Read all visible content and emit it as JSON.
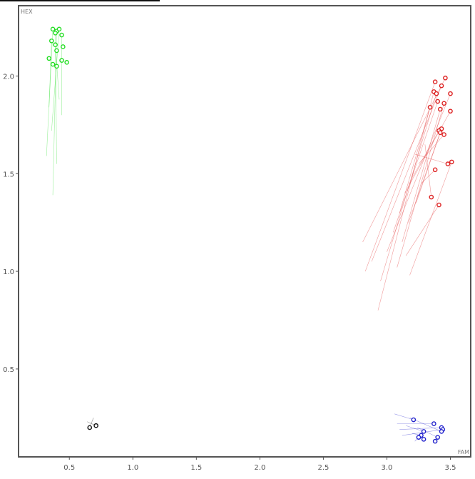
{
  "chart_data": {
    "type": "scatter",
    "xlabel": "FAM",
    "ylabel": "HEX",
    "xlim": [
      0.1,
      3.66
    ],
    "ylim": [
      0.05,
      2.36
    ],
    "x_ticks": [
      "0.5",
      "1.0",
      "1.5",
      "2.0",
      "2.5",
      "3.0",
      "3.5"
    ],
    "y_ticks": [
      "0.5",
      "1.0",
      "1.5",
      "2.0"
    ],
    "grid": false,
    "series": [
      {
        "color": "#22dd22",
        "points": [
          {
            "x": 0.37,
            "y": 2.24
          },
          {
            "x": 0.4,
            "y": 2.23
          },
          {
            "x": 0.42,
            "y": 2.24
          },
          {
            "x": 0.39,
            "y": 2.22
          },
          {
            "x": 0.44,
            "y": 2.21
          },
          {
            "x": 0.36,
            "y": 2.18
          },
          {
            "x": 0.39,
            "y": 2.16
          },
          {
            "x": 0.45,
            "y": 2.15
          },
          {
            "x": 0.4,
            "y": 2.13
          },
          {
            "x": 0.34,
            "y": 2.09
          },
          {
            "x": 0.44,
            "y": 2.08
          },
          {
            "x": 0.48,
            "y": 2.07
          },
          {
            "x": 0.37,
            "y": 2.06
          },
          {
            "x": 0.4,
            "y": 2.05
          }
        ],
        "trails": [
          {
            "x": 0.32,
            "y": 1.59
          },
          {
            "x": 0.37,
            "y": 1.39
          },
          {
            "x": 0.36,
            "y": 1.72
          },
          {
            "x": 0.4,
            "y": 1.55
          },
          {
            "x": 0.44,
            "y": 1.8
          },
          {
            "x": 0.34,
            "y": 1.84
          },
          {
            "x": 0.42,
            "y": 1.88
          }
        ]
      },
      {
        "color": "#dd2222",
        "points": [
          {
            "x": 3.46,
            "y": 1.99
          },
          {
            "x": 3.38,
            "y": 1.97
          },
          {
            "x": 3.43,
            "y": 1.95
          },
          {
            "x": 3.37,
            "y": 1.92
          },
          {
            "x": 3.39,
            "y": 1.91
          },
          {
            "x": 3.5,
            "y": 1.91
          },
          {
            "x": 3.4,
            "y": 1.87
          },
          {
            "x": 3.45,
            "y": 1.86
          },
          {
            "x": 3.34,
            "y": 1.84
          },
          {
            "x": 3.42,
            "y": 1.83
          },
          {
            "x": 3.5,
            "y": 1.82
          },
          {
            "x": 3.43,
            "y": 1.73
          },
          {
            "x": 3.41,
            "y": 1.72
          },
          {
            "x": 3.42,
            "y": 1.71
          },
          {
            "x": 3.45,
            "y": 1.7
          },
          {
            "x": 3.51,
            "y": 1.56
          },
          {
            "x": 3.48,
            "y": 1.55
          },
          {
            "x": 3.38,
            "y": 1.52
          },
          {
            "x": 3.35,
            "y": 1.38
          },
          {
            "x": 3.41,
            "y": 1.34
          }
        ],
        "trails": [
          {
            "x": 2.81,
            "y": 1.15
          },
          {
            "x": 2.83,
            "y": 1.0
          },
          {
            "x": 2.88,
            "y": 1.05
          },
          {
            "x": 2.93,
            "y": 0.8
          },
          {
            "x": 2.95,
            "y": 0.95
          },
          {
            "x": 3.0,
            "y": 1.1
          },
          {
            "x": 3.05,
            "y": 1.2
          },
          {
            "x": 3.08,
            "y": 1.02
          },
          {
            "x": 3.1,
            "y": 1.3
          },
          {
            "x": 3.12,
            "y": 1.15
          },
          {
            "x": 3.14,
            "y": 1.4
          },
          {
            "x": 3.17,
            "y": 1.25
          },
          {
            "x": 3.2,
            "y": 1.48
          },
          {
            "x": 3.23,
            "y": 1.35
          },
          {
            "x": 3.25,
            "y": 1.55
          },
          {
            "x": 3.18,
            "y": 0.98
          },
          {
            "x": 3.22,
            "y": 1.6
          },
          {
            "x": 3.27,
            "y": 1.45
          },
          {
            "x": 3.3,
            "y": 1.65
          },
          {
            "x": 3.15,
            "y": 1.08
          }
        ]
      },
      {
        "color": "#2222cc",
        "points": [
          {
            "x": 3.21,
            "y": 0.24
          },
          {
            "x": 3.37,
            "y": 0.22
          },
          {
            "x": 3.43,
            "y": 0.2
          },
          {
            "x": 3.44,
            "y": 0.19
          },
          {
            "x": 3.29,
            "y": 0.18
          },
          {
            "x": 3.43,
            "y": 0.18
          },
          {
            "x": 3.27,
            "y": 0.16
          },
          {
            "x": 3.25,
            "y": 0.15
          },
          {
            "x": 3.4,
            "y": 0.15
          },
          {
            "x": 3.29,
            "y": 0.14
          },
          {
            "x": 3.38,
            "y": 0.13
          }
        ],
        "trails": [
          {
            "x": 3.06,
            "y": 0.27
          },
          {
            "x": 3.08,
            "y": 0.22
          },
          {
            "x": 3.1,
            "y": 0.19
          },
          {
            "x": 3.12,
            "y": 0.16
          },
          {
            "x": 3.15,
            "y": 0.21
          },
          {
            "x": 3.18,
            "y": 0.25
          },
          {
            "x": 3.2,
            "y": 0.17
          },
          {
            "x": 3.22,
            "y": 0.13
          },
          {
            "x": 3.24,
            "y": 0.2
          }
        ]
      },
      {
        "color": "#111111",
        "points": [
          {
            "x": 0.66,
            "y": 0.2
          },
          {
            "x": 0.71,
            "y": 0.21
          }
        ],
        "trails": [
          {
            "x": 0.69,
            "y": 0.25
          },
          {
            "x": 0.64,
            "y": 0.23
          }
        ]
      }
    ]
  }
}
